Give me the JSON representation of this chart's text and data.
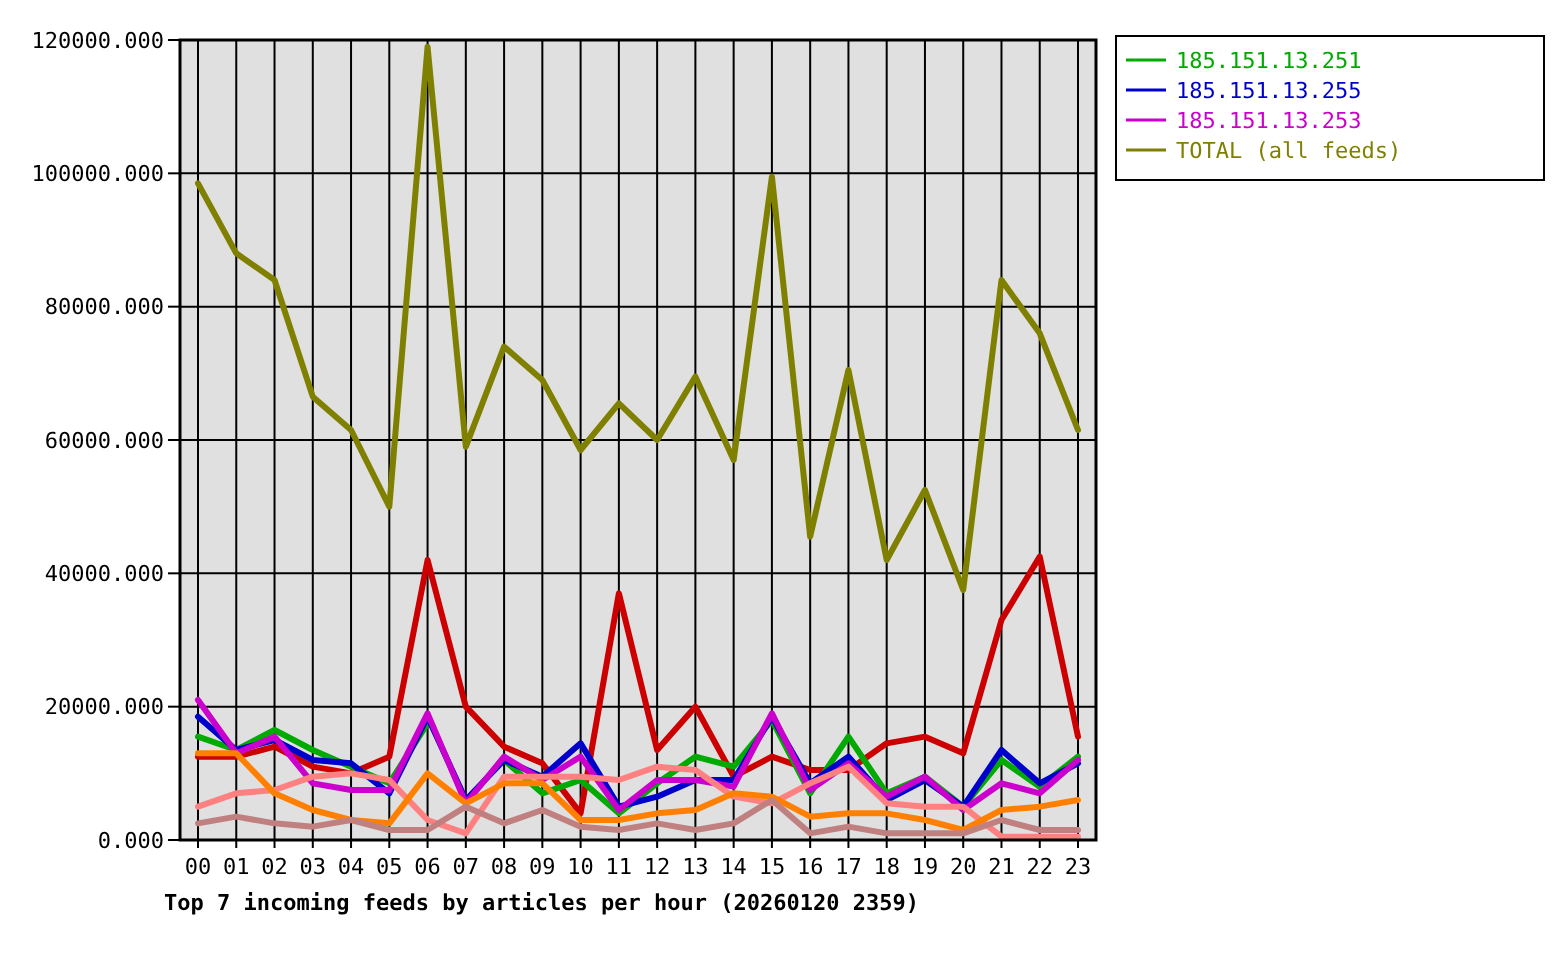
{
  "chart_data": {
    "type": "line",
    "title": "Top 7 incoming feeds by articles per hour (20260120 2359)",
    "categories": [
      "00",
      "01",
      "02",
      "03",
      "04",
      "05",
      "06",
      "07",
      "08",
      "09",
      "10",
      "11",
      "12",
      "13",
      "14",
      "15",
      "16",
      "17",
      "18",
      "19",
      "20",
      "21",
      "22",
      "23"
    ],
    "ylim": [
      0,
      120000
    ],
    "yticks": [
      {
        "value": 0,
        "label": "0.000"
      },
      {
        "value": 20000,
        "label": "20000.000"
      },
      {
        "value": 40000,
        "label": "40000.000"
      },
      {
        "value": 60000,
        "label": "60000.000"
      },
      {
        "value": 80000,
        "label": "80000.000"
      },
      {
        "value": 100000,
        "label": "100000.000"
      },
      {
        "value": 120000,
        "label": "120000.000"
      }
    ],
    "grid": true,
    "legend": "right",
    "marker": "none",
    "line_style": "solid",
    "series": [
      {
        "color": "#cc0000",
        "values": [
          12500,
          12500,
          14000,
          11000,
          10000,
          12500,
          42000,
          20000,
          14000,
          11500,
          4000,
          37000,
          13500,
          20000,
          9500,
          12500,
          10500,
          10500,
          14500,
          15500,
          13000,
          33000,
          42500,
          15500
        ]
      },
      {
        "name": "185.151.13.251",
        "color": "#00aa00",
        "values": [
          15500,
          13500,
          16500,
          13500,
          11000,
          8500,
          17500,
          null,
          12000,
          7000,
          9000,
          4000,
          8500,
          12500,
          11000,
          18000,
          7000,
          15500,
          7000,
          9500,
          5000,
          12000,
          8000,
          12500
        ]
      },
      {
        "name": "185.151.13.255",
        "color": "#0000cc",
        "values": [
          18500,
          13500,
          15000,
          12000,
          11500,
          7000,
          18500,
          6000,
          12000,
          9500,
          14500,
          5000,
          6500,
          9000,
          9000,
          18500,
          8500,
          12500,
          6000,
          9000,
          5000,
          13500,
          8500,
          11500
        ]
      },
      {
        "name": "185.151.13.253",
        "color": "#cc00cc",
        "values": [
          21000,
          13000,
          15500,
          8500,
          7500,
          7500,
          19000,
          5500,
          12500,
          9000,
          12500,
          4500,
          9000,
          9000,
          8000,
          19000,
          7500,
          11500,
          6500,
          9500,
          4500,
          8500,
          7000,
          12000
        ]
      },
      {
        "color": "#ff8080",
        "values": [
          5000,
          7000,
          7500,
          9500,
          10000,
          9000,
          3000,
          1000,
          9500,
          9500,
          9500,
          9000,
          11000,
          10500,
          6500,
          5500,
          8500,
          11000,
          5500,
          5000,
          5000,
          500,
          500,
          500
        ]
      },
      {
        "color": "#ff8000",
        "values": [
          13000,
          13000,
          7000,
          4500,
          3000,
          2500,
          10000,
          5500,
          8500,
          8500,
          3000,
          3000,
          4000,
          4500,
          7000,
          6500,
          3500,
          4000,
          4000,
          3000,
          1500,
          4500,
          5000,
          6000
        ]
      },
      {
        "color": "#c08080",
        "values": [
          2500,
          3500,
          2500,
          2000,
          3000,
          1500,
          1500,
          5000,
          2500,
          4500,
          2000,
          1500,
          2500,
          1500,
          2500,
          6000,
          1000,
          2000,
          1000,
          1000,
          1000,
          3000,
          1500,
          1500
        ]
      },
      {
        "name": "TOTAL (all feeds)",
        "color": "#808000",
        "values": [
          98500,
          88000,
          84000,
          66500,
          61500,
          50000,
          119000,
          59000,
          74000,
          69000,
          58500,
          65500,
          60000,
          69500,
          57000,
          99500,
          45500,
          70500,
          42000,
          52500,
          37500,
          84000,
          76000,
          61500
        ]
      }
    ]
  }
}
